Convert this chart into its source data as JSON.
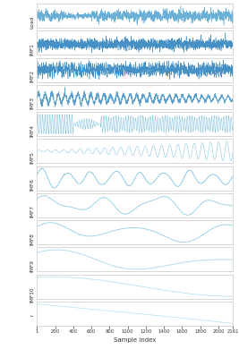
{
  "n_samples": 2161,
  "x_ticks": [
    1,
    200,
    400,
    600,
    800,
    1000,
    1200,
    1400,
    1600,
    1800,
    2000,
    2161
  ],
  "xlabel": "Sample index",
  "row_labels": [
    "Load",
    "IMF1",
    "IMF2",
    "IMF3",
    "IMF4",
    "IMF5",
    "IMF6",
    "IMF7",
    "IMF8",
    "IMF9",
    "IMF10",
    "r"
  ],
  "colors": {
    "Load": "#6aafd6",
    "IMF1": "#4590c4",
    "IMF2": "#4590c4",
    "IMF3": "#5ba0cc",
    "IMF4": "#7dc0e0",
    "IMF5": "#7dc0e0",
    "IMF6": "#7dc0e0",
    "IMF7": "#90cce6",
    "IMF8": "#90cce6",
    "IMF9": "#a8d8ec",
    "IMF10": "#b8e0f0",
    "r": "#c0e4f4"
  },
  "background_color": "#ffffff",
  "panel_facecolor": "#ffffff"
}
